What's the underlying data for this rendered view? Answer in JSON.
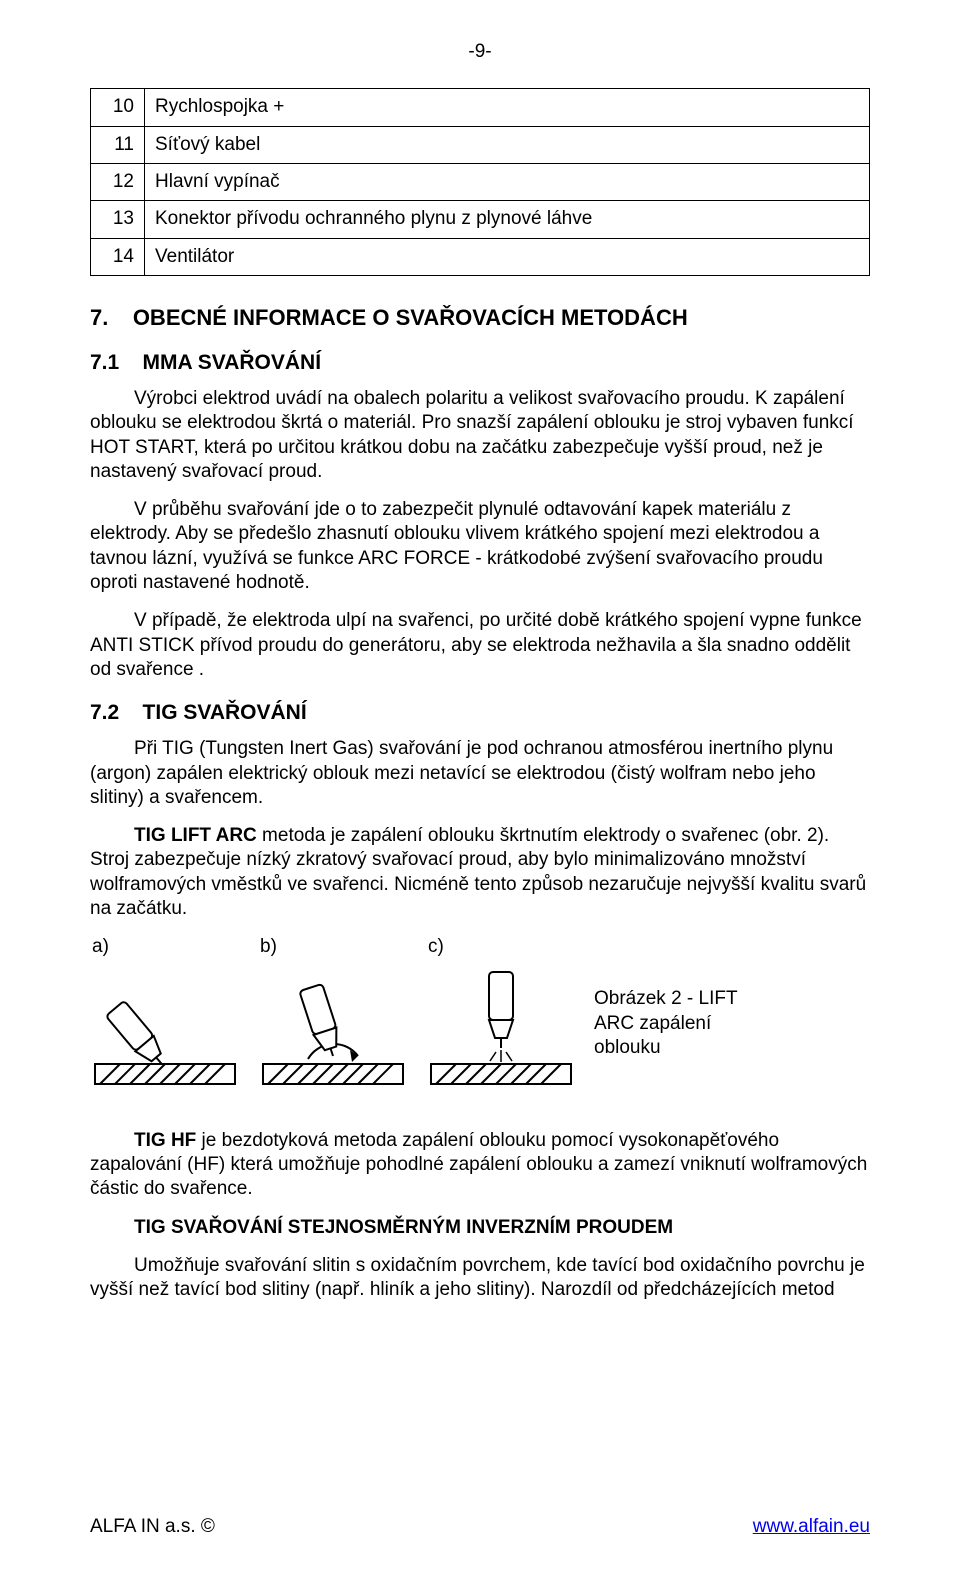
{
  "page_number": "-9-",
  "parts_table": {
    "rows": [
      {
        "num": "10",
        "label": "Rychlospojka +"
      },
      {
        "num": "11",
        "label": "Síťový kabel"
      },
      {
        "num": "12",
        "label": "Hlavní vypínač"
      },
      {
        "num": "13",
        "label": "Konektor přívodu ochranného plynu z plynové láhve"
      },
      {
        "num": "14",
        "label": "Ventilátor"
      }
    ]
  },
  "section7": {
    "num": "7.",
    "title": "OBECNÉ INFORMACE O SVAŘOVACÍCH METODÁCH"
  },
  "section7_1": {
    "num": "7.1",
    "title": "MMA SVAŘOVÁNÍ",
    "p1": "Výrobci elektrod uvádí na obalech polaritu a velikost svařovacího proudu. K zapálení oblouku se elektrodou škrtá o materiál. Pro snazší zapálení oblouku je stroj vybaven funkcí HOT START, která po určitou krátkou dobu na začátku zabezpečuje vyšší proud, než je nastavený svařovací proud.",
    "p2": "V průběhu svařování jde o to zabezpečit plynulé odtavování kapek materiálu z elektrody. Aby se předešlo zhasnutí oblouku vlivem krátkého spojení mezi elektrodou a tavnou lázní, využívá se funkce ARC FORCE - krátkodobé zvýšení svařovacího proudu oproti nastavené hodnotě.",
    "p3": "V případě, že elektroda ulpí na svařenci, po určité době krátkého spojení vypne funkce ANTI STICK přívod proudu do generátoru, aby se elektroda nežhavila a šla snadno oddělit od svařence ."
  },
  "section7_2": {
    "num": "7.2",
    "title": "TIG SVAŘOVÁNÍ",
    "p1": "Při TIG (Tungsten Inert Gas) svařování je pod ochranou atmosférou inertního plynu (argon) zapálen elektrický oblouk mezi netavící se elektrodou (čistý wolfram nebo jeho slitiny) a svařencem.",
    "p2_bold": "TIG LIFT ARC",
    "p2_rest": " metoda je zapálení oblouku škrtnutím elektrody o svařenec (obr. 2). Stroj zabezpečuje nízký zkratový svařovací proud, aby bylo minimalizováno množství wolframových vměstků ve svařenci. Nicméně tento způsob nezaručuje nejvyšší kvalitu svarů na  začátku.",
    "fig_a": "a)",
    "fig_b": "b)",
    "fig_c": "c)",
    "caption": "Obrázek 2 - LIFT ARC zapálení oblouku",
    "p3_bold": "TIG HF",
    "p3_rest": " je bezdotyková metoda zapálení oblouku pomocí vysokonapěťového zapalování (HF) která umožňuje pohodlné  zapálení oblouku a  zamezí vniknutí wolframových částic do  svařence.",
    "p4_bold": "TIG SVAŘOVÁNÍ STEJNOSMĚRNÝM INVERZNÍM PROUDEM",
    "p5": "Umožňuje svařování slitin s oxidačním povrchem, kde tavící bod oxidačního povrchu je vyšší než tavící bod slitiny (např. hliník a jeho slitiny). Narozdíl od předcházejících metod"
  },
  "footer": {
    "left": "ALFA IN a.s. ©",
    "right_text": "www.alfain.eu",
    "right_href": "http://www.alfain.eu"
  },
  "colors": {
    "text": "#000000",
    "link": "#0000ee",
    "bg": "#ffffff",
    "stroke": "#000000"
  }
}
